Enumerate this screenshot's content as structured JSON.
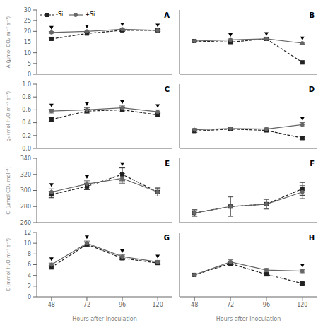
{
  "chart_data": [
    {
      "type": "line",
      "annotations": [
        "A"
      ],
      "x": [
        48,
        72,
        96,
        120
      ],
      "xlim": [
        38,
        130
      ],
      "xticks": [
        48,
        72,
        96,
        120
      ],
      "ylim": [
        0,
        30
      ],
      "yticks": [
        0,
        5,
        10,
        15,
        20,
        25,
        30
      ],
      "y_label": "A (μmol CO₂ m⁻² s⁻¹)",
      "tick_labels": "y",
      "grid": false,
      "legend": "upper left",
      "series": [
        {
          "name": "-Si",
          "color": "#222222",
          "marker": "square",
          "line_style": "dashed",
          "values": [
            16.5,
            19.0,
            20.5,
            20.5
          ],
          "errors": [
            0.5,
            0.6,
            0.5,
            0.5
          ]
        },
        {
          "name": "+Si",
          "color": "#666666",
          "marker": "circle",
          "line_style": "solid",
          "values": [
            19.5,
            20.0,
            21.0,
            20.5
          ],
          "errors": [
            0.4,
            0.5,
            0.5,
            0.5
          ]
        }
      ],
      "significant_x": [
        48,
        72,
        96,
        120
      ]
    },
    {
      "type": "line",
      "annotations": [
        "B"
      ],
      "x": [
        48,
        72,
        96,
        120
      ],
      "xlim": [
        38,
        130
      ],
      "xticks": [
        48,
        72,
        96,
        120
      ],
      "ylim": [
        0,
        30
      ],
      "yticks": [
        0,
        5,
        10,
        15,
        20,
        25,
        30
      ],
      "tick_labels": false,
      "grid": false,
      "series": [
        {
          "name": "-Si",
          "color": "#222222",
          "marker": "square",
          "line_style": "dashed",
          "values": [
            15.5,
            15.0,
            16.5,
            5.5
          ],
          "errors": [
            0.5,
            0.5,
            0.5,
            0.7
          ]
        },
        {
          "name": "+Si",
          "color": "#666666",
          "marker": "circle",
          "line_style": "solid",
          "values": [
            15.5,
            16.0,
            16.5,
            14.5
          ],
          "errors": [
            0.4,
            0.5,
            0.5,
            0.5
          ]
        }
      ],
      "significant_x": [
        72,
        96,
        120
      ]
    },
    {
      "type": "line",
      "annotations": [
        "C"
      ],
      "x": [
        48,
        72,
        96,
        120
      ],
      "xlim": [
        38,
        130
      ],
      "xticks": [
        48,
        72,
        96,
        120
      ],
      "ylim": [
        0.0,
        1.0
      ],
      "yticks": [
        {
          "value": 0.0,
          "label": "0.0"
        },
        0.2,
        0.4,
        0.6,
        0.8,
        {
          "value": 1.0,
          "label": "1.0"
        }
      ],
      "y_label": "gₛ (mol H₂O m⁻² s⁻¹)",
      "tick_labels": "y",
      "grid": false,
      "series": [
        {
          "name": "-Si",
          "color": "#222222",
          "marker": "square",
          "line_style": "dashed",
          "values": [
            0.45,
            0.58,
            0.6,
            0.52
          ],
          "errors": [
            0.03,
            0.03,
            0.03,
            0.03
          ]
        },
        {
          "name": "+Si",
          "color": "#666666",
          "marker": "circle",
          "line_style": "solid",
          "values": [
            0.58,
            0.6,
            0.63,
            0.57
          ],
          "errors": [
            0.03,
            0.03,
            0.03,
            0.03
          ]
        }
      ],
      "significant_x": [
        48,
        72,
        96,
        120
      ]
    },
    {
      "type": "line",
      "annotations": [
        "D"
      ],
      "x": [
        48,
        72,
        96,
        120
      ],
      "xlim": [
        38,
        130
      ],
      "xticks": [
        48,
        72,
        96,
        120
      ],
      "ylim": [
        0.0,
        1.0
      ],
      "yticks": [
        0.0,
        0.2,
        0.4,
        0.6,
        0.8,
        1.0
      ],
      "tick_labels": false,
      "grid": false,
      "series": [
        {
          "name": "-Si",
          "color": "#222222",
          "marker": "square",
          "line_style": "dashed",
          "values": [
            0.27,
            0.3,
            0.28,
            0.16
          ],
          "errors": [
            0.02,
            0.02,
            0.02,
            0.02
          ]
        },
        {
          "name": "+Si",
          "color": "#666666",
          "marker": "circle",
          "line_style": "solid",
          "values": [
            0.29,
            0.31,
            0.3,
            0.37
          ],
          "errors": [
            0.02,
            0.02,
            0.02,
            0.03
          ]
        }
      ],
      "significant_x": [
        120
      ]
    },
    {
      "type": "line",
      "annotations": [
        "E"
      ],
      "x": [
        48,
        72,
        96,
        120
      ],
      "xlim": [
        38,
        130
      ],
      "xticks": [
        48,
        72,
        96,
        120
      ],
      "ylim": [
        260,
        340
      ],
      "yticks": [
        260,
        280,
        300,
        320,
        340
      ],
      "y_label": "Cᵢ (μmol CO₂ mol⁻¹)",
      "tick_labels": "y",
      "grid": false,
      "series": [
        {
          "name": "-Si",
          "color": "#222222",
          "marker": "square",
          "line_style": "dashed",
          "values": [
            295,
            305,
            320,
            298
          ],
          "errors": [
            4,
            4,
            8,
            5
          ]
        },
        {
          "name": "+Si",
          "color": "#666666",
          "marker": "circle",
          "line_style": "solid",
          "values": [
            298,
            308,
            315,
            298
          ],
          "errors": [
            4,
            4,
            6,
            5
          ]
        }
      ],
      "significant_x": [
        48,
        72,
        96
      ]
    },
    {
      "type": "line",
      "annotations": [
        "F"
      ],
      "x": [
        48,
        72,
        96,
        120
      ],
      "xlim": [
        38,
        130
      ],
      "xticks": [
        48,
        72,
        96,
        120
      ],
      "ylim": [
        260,
        340
      ],
      "yticks": [
        260,
        280,
        300,
        320,
        340
      ],
      "tick_labels": false,
      "grid": false,
      "series": [
        {
          "name": "-Si",
          "color": "#222222",
          "marker": "square",
          "line_style": "dashed",
          "values": [
            272,
            280,
            283,
            302
          ],
          "errors": [
            4,
            12,
            6,
            8
          ]
        },
        {
          "name": "+Si",
          "color": "#666666",
          "marker": "circle",
          "line_style": "solid",
          "values": [
            272,
            280,
            283,
            298
          ],
          "errors": [
            4,
            12,
            6,
            8
          ]
        }
      ],
      "significant_x": []
    },
    {
      "type": "line",
      "annotations": [
        "G"
      ],
      "x": [
        48,
        72,
        96,
        120
      ],
      "xlim": [
        38,
        130
      ],
      "xticks": [
        48,
        72,
        96,
        120
      ],
      "ylim": [
        0,
        12
      ],
      "yticks": [
        0,
        2,
        4,
        6,
        8,
        10,
        12
      ],
      "y_label": "E (mmol H₂O m⁻² s⁻¹)",
      "x_label": "Hours after inoculation",
      "grid": false,
      "series": [
        {
          "name": "-Si",
          "color": "#222222",
          "marker": "square",
          "line_style": "dashed",
          "values": [
            5.5,
            9.8,
            7.2,
            6.3
          ],
          "errors": [
            0.3,
            0.4,
            0.3,
            0.3
          ]
        },
        {
          "name": "+Si",
          "color": "#666666",
          "marker": "circle",
          "line_style": "solid",
          "values": [
            6.0,
            10.0,
            7.5,
            6.5
          ],
          "errors": [
            0.3,
            0.4,
            0.3,
            0.3
          ]
        }
      ],
      "significant_x": [
        48,
        72,
        96,
        120
      ]
    },
    {
      "type": "line",
      "annotations": [
        "H"
      ],
      "x": [
        48,
        72,
        96,
        120
      ],
      "xlim": [
        38,
        130
      ],
      "xticks": [
        48,
        72,
        96,
        120
      ],
      "ylim": [
        0,
        12
      ],
      "yticks": [
        0,
        2,
        4,
        6,
        8,
        10,
        12
      ],
      "x_label": "Hours after inoculation",
      "tick_labels": "x",
      "grid": false,
      "series": [
        {
          "name": "-Si",
          "color": "#222222",
          "marker": "square",
          "line_style": "dashed",
          "values": [
            4.1,
            6.2,
            4.2,
            2.5
          ],
          "errors": [
            0.2,
            0.4,
            0.3,
            0.2
          ]
        },
        {
          "name": "+Si",
          "color": "#666666",
          "marker": "circle",
          "line_style": "solid",
          "values": [
            4.1,
            6.5,
            5.0,
            4.8
          ],
          "errors": [
            0.2,
            0.4,
            0.3,
            0.3
          ]
        }
      ],
      "significant_x": [
        120
      ]
    }
  ]
}
